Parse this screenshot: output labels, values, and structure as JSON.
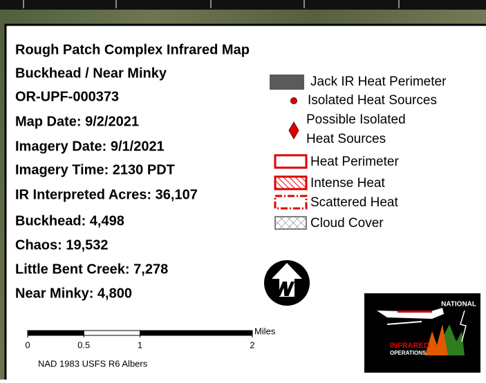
{
  "info_lines": [
    "Rough Patch Complex Infrared Map",
    "Buckhead / Near Minky",
    "OR-UPF-000373",
    "Map Date: 9/2/2021",
    "Imagery Date:  9/1/2021",
    "Imagery Time: 2130 PDT",
    "IR Interpreted Acres: 36,107",
    "Buckhead: 4,498",
    "Chaos: 19,532",
    "Little Bent Creek: 7,278",
    "Near Minky: 4,800"
  ],
  "legend": [
    "Jack IR Heat Perimeter",
    "Isolated Heat Sources",
    "Possible Isolated",
    "Heat Sources",
    "Heat Perimeter",
    "Intense Heat",
    "Scattered Heat",
    "Cloud Cover"
  ],
  "scale_bar": {
    "unit": "Miles",
    "ticks": [
      0,
      0.5,
      1,
      2
    ]
  },
  "projection": "NAD 1983 USFS R6 Albers",
  "logo": {
    "top": "NATIONAL",
    "name": "INFRARED",
    "sub": "OPERATIONS"
  }
}
